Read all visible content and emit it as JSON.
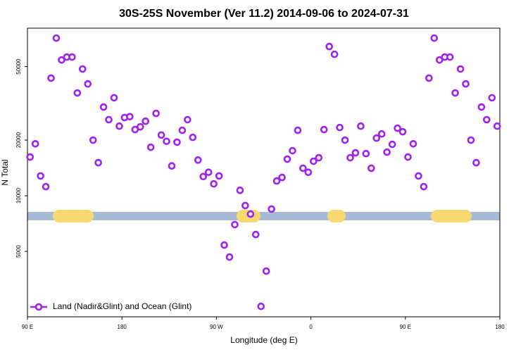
{
  "chart_data": {
    "type": "scatter",
    "title": "30S-25S November (Ver 11.2)   2014-09-06 to 2024-07-31",
    "xlabel": "Longitude (deg E)",
    "ylabel": "N Total",
    "yscale": "log",
    "legend": "lower left",
    "xlim": [
      90,
      540
    ],
    "xticks": [
      {
        "value": 90,
        "label": "90 E"
      },
      {
        "value": 180,
        "label": "180"
      },
      {
        "value": 270,
        "label": "90 W"
      },
      {
        "value": 360,
        "label": "0"
      },
      {
        "value": 450,
        "label": "90 E"
      },
      {
        "value": 540,
        "label": "180"
      }
    ],
    "ylim": [
      2213,
      80700
    ],
    "yticks": [
      5000,
      10000,
      20000,
      50000
    ],
    "series": [
      {
        "name": "Land (Nadir&Glint) and Ocean (Glint)",
        "color": "#a020f0",
        "x": [
          92.5,
          97.5,
          102.5,
          107.5,
          112.5,
          117.5,
          122.5,
          127.5,
          132.5,
          137.5,
          142.5,
          147.5,
          152.5,
          157.5,
          162.5,
          167.5,
          172.5,
          177.5,
          182.5,
          187.5,
          192.5,
          197.5,
          202.5,
          207.5,
          212.5,
          217.5,
          222.5,
          227.5,
          232.5,
          237.5,
          242.5,
          247.5,
          252.5,
          257.5,
          262.5,
          267.5,
          272.5,
          277.5,
          282.5,
          287.5,
          292.5,
          297.5,
          302.5,
          307.5,
          312.5,
          317.5,
          322.5,
          327.5,
          332.5,
          337.5,
          342.5,
          347.5,
          352.5,
          357.5,
          362.5,
          367.5,
          372.5,
          377.5,
          382.5,
          387.5,
          392.5,
          397.5,
          402.5,
          407.5,
          412.5,
          417.5,
          422.5,
          427.5,
          432.5,
          437.5,
          442.5,
          447.5,
          452.5,
          457.5,
          462.5,
          467.5,
          472.5,
          477.5,
          482.5,
          487.5,
          492.5,
          497.5,
          502.5,
          507.5,
          512.5,
          517.5,
          522.5,
          527.5,
          532.5,
          537.5
        ],
        "values": [
          16200,
          19100,
          12800,
          11200,
          43300,
          71300,
          54300,
          56300,
          56300,
          36000,
          48500,
          40300,
          20000,
          15100,
          30200,
          25800,
          33900,
          23800,
          26500,
          26800,
          22800,
          23600,
          25300,
          18300,
          27900,
          21300,
          19700,
          14500,
          19500,
          22600,
          25800,
          20700,
          15600,
          12700,
          13400,
          11600,
          12800,
          5410,
          4660,
          6980,
          10700,
          8850,
          7960,
          6170,
          2520,
          3910,
          8470,
          12020,
          12560,
          15780,
          17530,
          22600,
          14090,
          13400,
          15370,
          16060,
          22800,
          64200,
          58300,
          23400,
          20000,
          16060,
          17070,
          23800,
          16900,
          14090,
          20500,
          21600,
          17220,
          18970,
          23200,
          22200,
          16200,
          19100,
          12800,
          11200,
          43300,
          71300,
          54300,
          56300,
          56300,
          36000,
          48500,
          40300,
          20000,
          15100,
          30200,
          25800,
          33900,
          23800
        ]
      }
    ]
  }
}
